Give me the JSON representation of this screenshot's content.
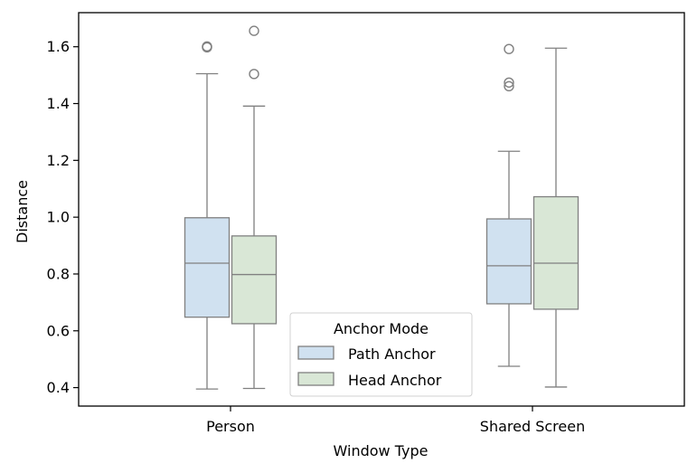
{
  "chart_data": {
    "type": "box",
    "title": "",
    "xlabel": "Window Type",
    "ylabel": "Distance",
    "ylim": [
      0.335,
      1.72
    ],
    "yticks": [
      0.4,
      0.6,
      0.8,
      1.0,
      1.2,
      1.4,
      1.6
    ],
    "ytick_labels": [
      "0.4",
      "0.6",
      "0.8",
      "1.0",
      "1.2",
      "1.4",
      "1.6"
    ],
    "categories": [
      "Person",
      "Shared Screen"
    ],
    "grid": false,
    "legend": {
      "title": "Anchor Mode",
      "placement": "lower center"
    },
    "series": [
      {
        "name": "Path Anchor",
        "color": "#d0e1f0",
        "boxes": [
          {
            "category": "Person",
            "whisker_low": 0.395,
            "q1": 0.648,
            "median": 0.838,
            "q3": 0.998,
            "whisker_high": 1.505,
            "outliers": [
              1.598,
              1.601
            ]
          },
          {
            "category": "Shared Screen",
            "whisker_low": 0.475,
            "q1": 0.695,
            "median": 0.829,
            "q3": 0.994,
            "whisker_high": 1.232,
            "outliers": [
              1.461,
              1.474,
              1.592
            ]
          }
        ]
      },
      {
        "name": "Head Anchor",
        "color": "#d9e7d6",
        "boxes": [
          {
            "category": "Person",
            "whisker_low": 0.397,
            "q1": 0.625,
            "median": 0.798,
            "q3": 0.934,
            "whisker_high": 1.391,
            "outliers": [
              1.504,
              1.656
            ]
          },
          {
            "category": "Shared Screen",
            "whisker_low": 0.402,
            "q1": 0.676,
            "median": 0.838,
            "q3": 1.072,
            "whisker_high": 1.595,
            "outliers": []
          }
        ]
      }
    ]
  }
}
